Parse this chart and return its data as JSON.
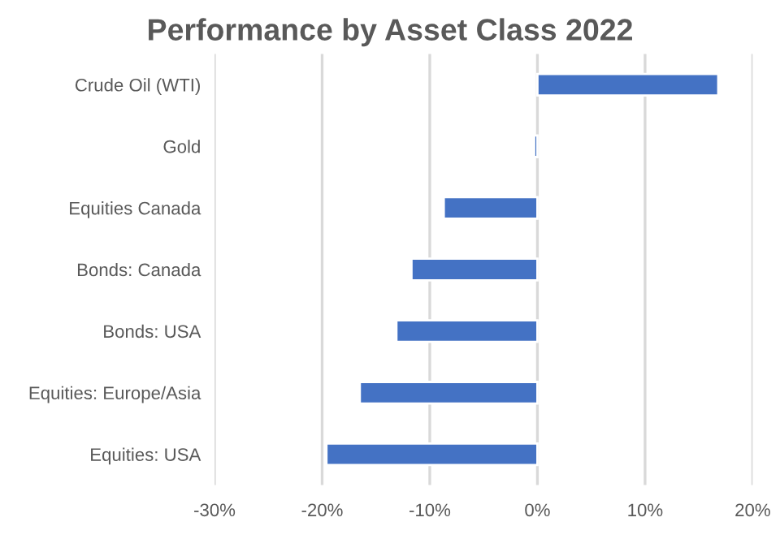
{
  "chart_data": {
    "type": "bar",
    "orientation": "horizontal",
    "title": "Performance by Asset Class 2022",
    "categories": [
      "Crude Oil (WTI)",
      "Gold",
      "Equities Canada",
      "Bonds: Canada",
      "Bonds: USA",
      "Equities: Europe/Asia",
      "Equities: USA"
    ],
    "values": [
      16.8,
      -0.3,
      -8.7,
      -11.7,
      -13.1,
      -16.5,
      -19.6
    ],
    "color": "#4472c4",
    "xlim": [
      -30,
      20
    ],
    "xticks": [
      {
        "value": -30,
        "label": "-30%"
      },
      {
        "value": -20,
        "label": "-20%"
      },
      {
        "value": -10,
        "label": "-10%"
      },
      {
        "value": 0,
        "label": "0%"
      },
      {
        "value": 10,
        "label": "10%"
      },
      {
        "value": 20,
        "label": "20%"
      }
    ],
    "grid": "x",
    "legend": false
  }
}
